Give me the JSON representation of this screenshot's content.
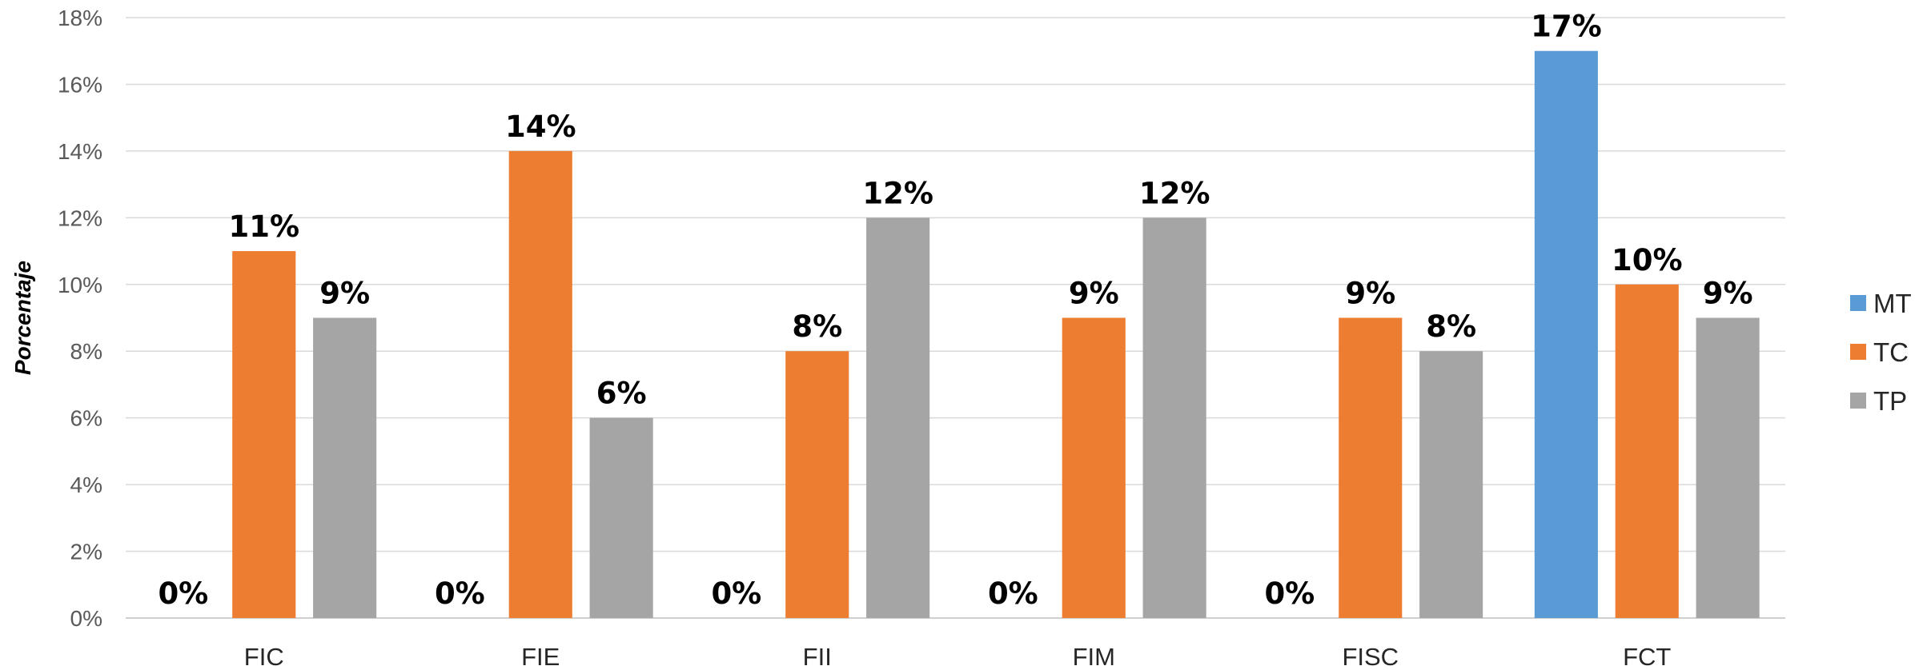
{
  "chart_data": {
    "type": "bar",
    "categories": [
      "FIC",
      "FIE",
      "FII",
      "FIM",
      "FISC",
      "FCT"
    ],
    "series": [
      {
        "name": "MT",
        "color": "#5B9BD5",
        "values": [
          0,
          0,
          0,
          0,
          0,
          17
        ]
      },
      {
        "name": "TC",
        "color": "#ED7D31",
        "values": [
          11,
          14,
          8,
          9,
          9,
          10
        ]
      },
      {
        "name": "TP",
        "color": "#A5A5A5",
        "values": [
          9,
          6,
          12,
          12,
          8,
          9
        ]
      }
    ],
    "data_labels": [
      [
        "0%",
        "0%",
        "0%",
        "0%",
        "0%",
        "17%"
      ],
      [
        "11%",
        "14%",
        "8%",
        "9%",
        "9%",
        "10%"
      ],
      [
        "9%",
        "6%",
        "12%",
        "12%",
        "8%",
        "9%"
      ]
    ],
    "ylabel": "Porcentaje",
    "ylim": [
      0,
      18
    ],
    "yticks": [
      "0%",
      "2%",
      "4%",
      "6%",
      "8%",
      "10%",
      "12%",
      "14%",
      "16%",
      "18%"
    ],
    "grid": true,
    "legend": "right"
  }
}
